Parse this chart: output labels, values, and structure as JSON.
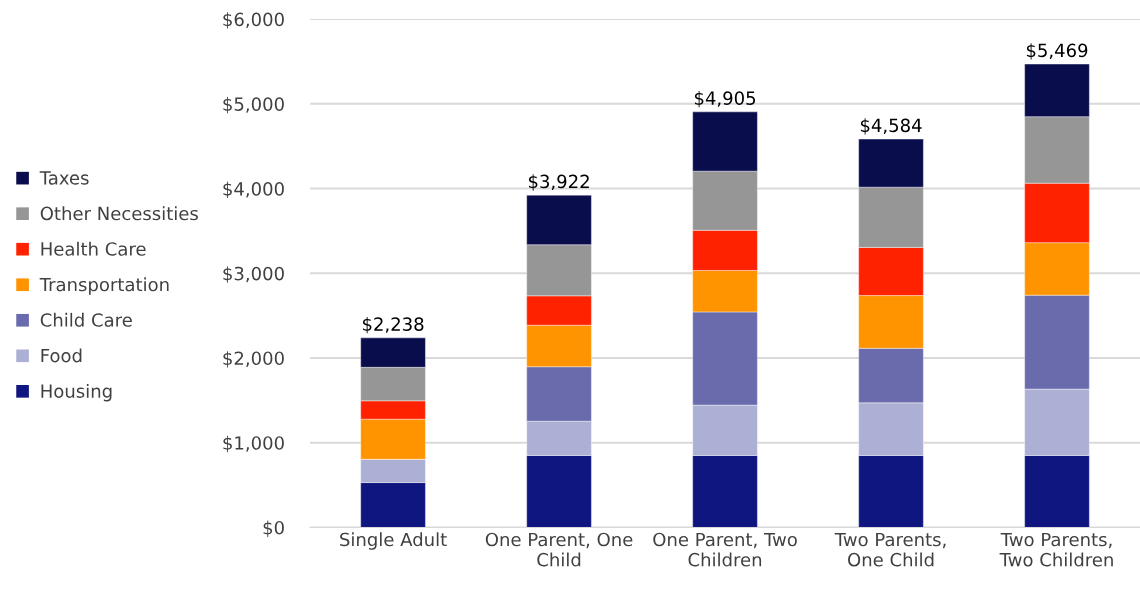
{
  "chart_data": {
    "type": "bar",
    "stacked": true,
    "categories": [
      "Single Adult",
      "One Parent, One Child",
      "One Parent, Two Children",
      "Two Parents, One Child",
      "Two Parents, Two Children"
    ],
    "series": [
      {
        "name": "Housing",
        "color": "#10167f",
        "values": [
          530,
          850,
          850,
          850,
          850
        ]
      },
      {
        "name": "Food",
        "color": "#adb0d5",
        "values": [
          275,
          404,
          594,
          621,
          783
        ]
      },
      {
        "name": "Child Care",
        "color": "#6a6bad",
        "values": [
          0,
          643,
          1100,
          643,
          1109
        ]
      },
      {
        "name": "Transportation",
        "color": "#ff9400",
        "values": [
          473,
          490,
          489,
          623,
          619
        ]
      },
      {
        "name": "Health Care",
        "color": "#ff2200",
        "values": [
          217,
          347,
          474,
          568,
          702
        ]
      },
      {
        "name": "Other Necessities",
        "color": "#969696",
        "values": [
          395,
          603,
          698,
          711,
          785
        ]
      },
      {
        "name": "Taxes",
        "color": "#0a0d4b",
        "values": [
          348,
          585,
          700,
          568,
          621
        ]
      }
    ],
    "totals": [
      "$2,238",
      "$3,922",
      "$4,905",
      "$4,584",
      "$5,469"
    ],
    "ylim": [
      0,
      6000
    ],
    "yticks": [
      {
        "value": 0,
        "label": "$0"
      },
      {
        "value": 1000,
        "label": "$1,000"
      },
      {
        "value": 2000,
        "label": "$2,000"
      },
      {
        "value": 3000,
        "label": "$3,000"
      },
      {
        "value": 4000,
        "label": "$4,000"
      },
      {
        "value": 5000,
        "label": "$5,000"
      },
      {
        "value": 6000,
        "label": "$6,000"
      }
    ],
    "grid": "y",
    "legend": "left"
  }
}
